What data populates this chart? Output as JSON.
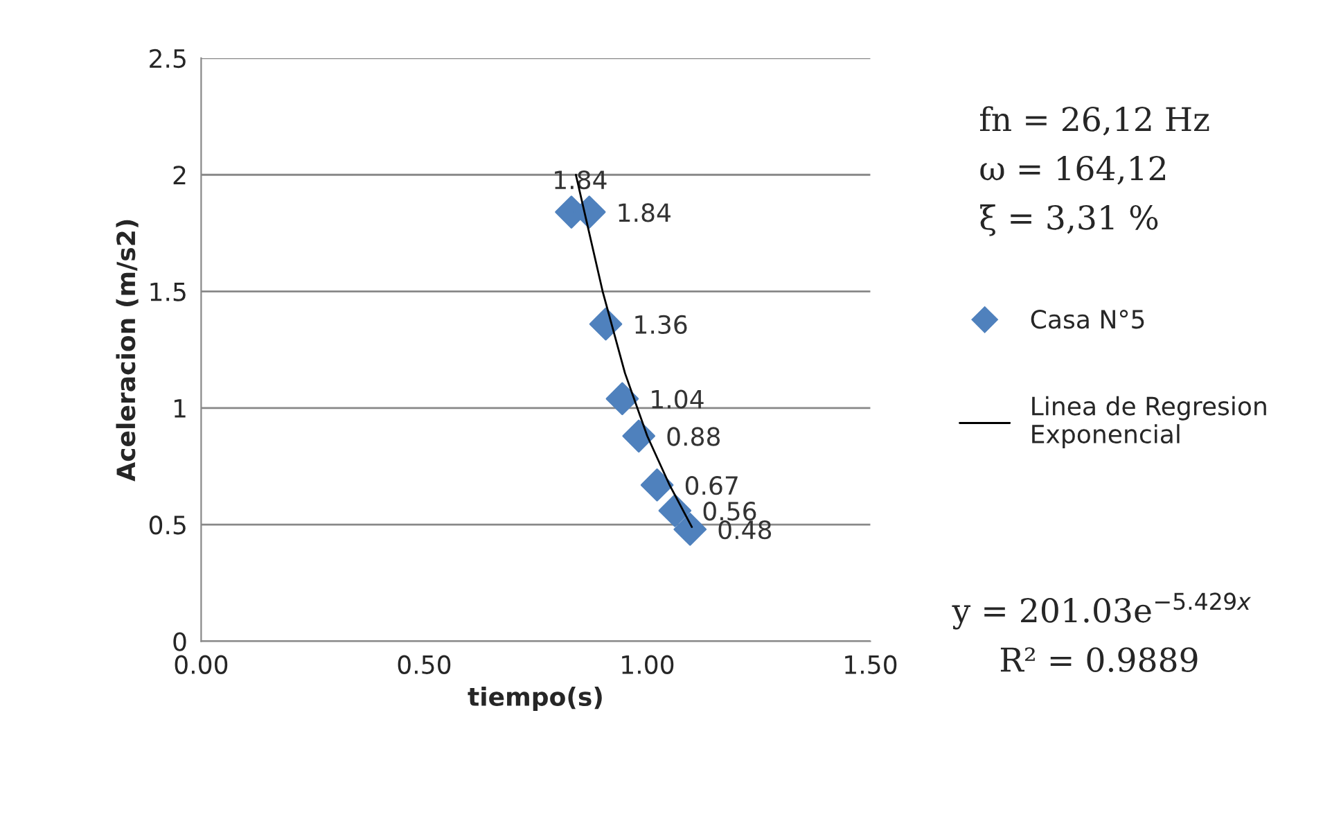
{
  "chart_data": {
    "type": "scatter",
    "xlabel": "tiempo(s)",
    "ylabel": "Aceleracion (m/s2)",
    "xlim": [
      0,
      1.5
    ],
    "xticks": [
      {
        "value": 0,
        "label": "0.00"
      },
      {
        "value": 0.5,
        "label": "0.50"
      },
      {
        "value": 1.0,
        "label": "1.00"
      },
      {
        "value": 1.5,
        "label": "1.50"
      }
    ],
    "ylim": [
      0,
      2.5
    ],
    "yticks": [
      0,
      0.5,
      1,
      1.5,
      2,
      2.5
    ],
    "grid": "y",
    "legend": "right",
    "series": [
      {
        "name": "Casa N°5",
        "marker": "diamond",
        "color": "#4f81bd",
        "data_labels": true,
        "x": [
          0.83,
          0.87,
          0.907,
          0.944,
          0.981,
          1.022,
          1.062,
          1.096
        ],
        "values": [
          1.84,
          1.84,
          1.36,
          1.04,
          0.88,
          0.67,
          0.56,
          0.48
        ]
      },
      {
        "name": "Linea de Regresion\nExponencial",
        "type": "line",
        "marker": "none",
        "line_style": "solid",
        "color": "#000000",
        "x": [
          0.84,
          0.9,
          0.95,
          1.0,
          1.05,
          1.1
        ],
        "values": [
          2.0,
          1.5,
          1.15,
          0.88,
          0.67,
          0.49
        ]
      }
    ],
    "annotations": [
      "fn = 26,12 Hz",
      "ω = 164,12",
      "ξ = 3,31 %",
      "y = 201.03e$^{−5.429x}$",
      "R² = 0.9889"
    ]
  }
}
